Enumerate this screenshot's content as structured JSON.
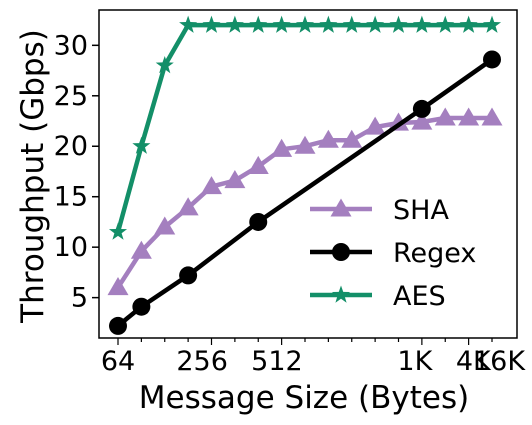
{
  "chart_data": {
    "type": "line",
    "xlabel": "Message Size (Bytes)",
    "ylabel": "Throughput (Gbps)",
    "x_tick_labels": [
      "64",
      "256",
      "512",
      "1K",
      "4K",
      "16K"
    ],
    "y_ticks": [
      5,
      10,
      15,
      20,
      25,
      30
    ],
    "ylim": [
      1,
      33.5
    ],
    "grid": false,
    "legend_position": "lower-right",
    "series": [
      {
        "name": "SHA",
        "color": "#a47fbf",
        "marker": "triangle",
        "values": [
          6.0,
          9.6,
          12.0,
          13.9,
          16.0,
          16.6,
          18.0,
          19.7,
          20.0,
          20.6,
          20.6,
          21.9,
          22.3,
          22.4,
          22.8,
          22.8,
          22.8
        ]
      },
      {
        "name": "Regex",
        "color": "#000000",
        "marker": "circle",
        "values": [
          2.2,
          4.1,
          null,
          7.2,
          null,
          null,
          12.5,
          null,
          null,
          null,
          null,
          null,
          null,
          23.7,
          null,
          null,
          28.6
        ]
      },
      {
        "name": "AES",
        "color": "#138f68",
        "marker": "star",
        "values": [
          11.5,
          20.0,
          28.0,
          32.0,
          32.0,
          32.0,
          32.0,
          32.0,
          32.0,
          32.0,
          32.0,
          32.0,
          32.0,
          32.0,
          32.0,
          32.0,
          32.0
        ]
      }
    ]
  }
}
